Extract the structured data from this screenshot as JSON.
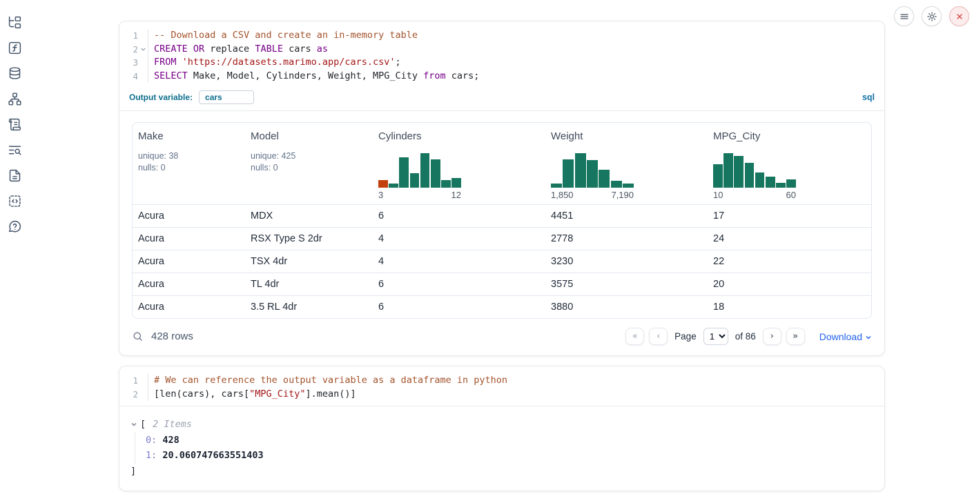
{
  "window": {
    "controls": [
      {
        "name": "menu",
        "icon": "hamburger-icon"
      },
      {
        "name": "settings",
        "icon": "gear-icon"
      },
      {
        "name": "close",
        "icon": "close-icon"
      }
    ]
  },
  "sidebar": {
    "icons": [
      "file-tree",
      "variables",
      "database",
      "dependency-graph",
      "scratchpad",
      "logs",
      "document",
      "snippets",
      "help"
    ]
  },
  "colors": {
    "histogram_bar": "#17765f",
    "histogram_first_bar": "#c2410c",
    "accent_teal": "#0e6f8e",
    "sql_label_blue": "#1273a5",
    "download_blue": "#2563eb",
    "close_red": "#d64545"
  },
  "sql_cell": {
    "language_label": "sql",
    "output_variable_label": "Output variable:",
    "output_variable_value": "cars",
    "code": [
      {
        "num": "1",
        "fold": false,
        "tokens": [
          {
            "t": "-- Download a CSV and create an in-memory table",
            "c": "comment"
          }
        ]
      },
      {
        "num": "2",
        "fold": true,
        "tokens": [
          {
            "t": "CREATE OR",
            "c": "keyword"
          },
          {
            "t": " replace ",
            "c": "plain"
          },
          {
            "t": "TABLE",
            "c": "keyword"
          },
          {
            "t": " cars ",
            "c": "plain"
          },
          {
            "t": "as",
            "c": "keyword"
          }
        ]
      },
      {
        "num": "3",
        "fold": false,
        "tokens": [
          {
            "t": "FROM",
            "c": "keyword"
          },
          {
            "t": " ",
            "c": "plain"
          },
          {
            "t": "'https://datasets.marimo.app/cars.csv'",
            "c": "string"
          },
          {
            "t": ";",
            "c": "plain"
          }
        ]
      },
      {
        "num": "4",
        "fold": false,
        "tokens": [
          {
            "t": "SELECT",
            "c": "keyword"
          },
          {
            "t": " Make, Model, Cylinders, Weight, MPG_City ",
            "c": "plain"
          },
          {
            "t": "from",
            "c": "keyword"
          },
          {
            "t": " cars;",
            "c": "plain"
          }
        ]
      }
    ]
  },
  "table": {
    "columns": [
      {
        "label": "Make",
        "summary": {
          "unique": "unique: 38",
          "nulls": "nulls: 0"
        }
      },
      {
        "label": "Model",
        "summary": {
          "unique": "unique: 425",
          "nulls": "nulls: 0"
        }
      },
      {
        "label": "Cylinders",
        "histogram": {
          "bars": [
            22,
            12,
            88,
            42,
            100,
            82,
            22,
            28
          ],
          "first_bar_orange": true,
          "min_label": "3",
          "max_label": "12"
        }
      },
      {
        "label": "Weight",
        "histogram": {
          "bars": [
            13,
            82,
            100,
            80,
            52,
            20,
            13
          ],
          "first_bar_orange": false,
          "min_label": "1,850",
          "max_label": "7,190"
        }
      },
      {
        "label": "MPG_City",
        "histogram": {
          "bars": [
            68,
            100,
            93,
            72,
            45,
            32,
            15,
            25
          ],
          "first_bar_orange": false,
          "min_label": "10",
          "max_label": "60"
        }
      }
    ],
    "rows": [
      [
        "Acura",
        "MDX",
        "6",
        "4451",
        "17"
      ],
      [
        "Acura",
        "RSX Type S 2dr",
        "4",
        "2778",
        "24"
      ],
      [
        "Acura",
        "TSX 4dr",
        "4",
        "3230",
        "22"
      ],
      [
        "Acura",
        "TL 4dr",
        "6",
        "3575",
        "20"
      ],
      [
        "Acura",
        "3.5 RL 4dr",
        "6",
        "3880",
        "18"
      ]
    ],
    "footer": {
      "row_count": "428 rows",
      "first_page": "«",
      "prev_page": "‹",
      "page_label": "Page",
      "page_value": "1",
      "of_label": "of 86",
      "next_page": "›",
      "last_page": "»",
      "download_label": "Download"
    }
  },
  "python_cell": {
    "code": [
      {
        "num": "1",
        "fold": false,
        "tokens": [
          {
            "t": "# We can reference the output variable as a dataframe in python",
            "c": "comment"
          }
        ]
      },
      {
        "num": "2",
        "fold": false,
        "tokens": [
          {
            "t": "[len(cars), cars[",
            "c": "plain"
          },
          {
            "t": "\"MPG_City\"",
            "c": "string"
          },
          {
            "t": "].mean()]",
            "c": "plain"
          }
        ]
      }
    ],
    "output": {
      "open_bracket": "[",
      "items_note": "2 Items",
      "entries": [
        {
          "index": "0",
          "value": "428"
        },
        {
          "index": "1",
          "value": "20.060747663551403"
        }
      ],
      "close_bracket": "]"
    }
  }
}
